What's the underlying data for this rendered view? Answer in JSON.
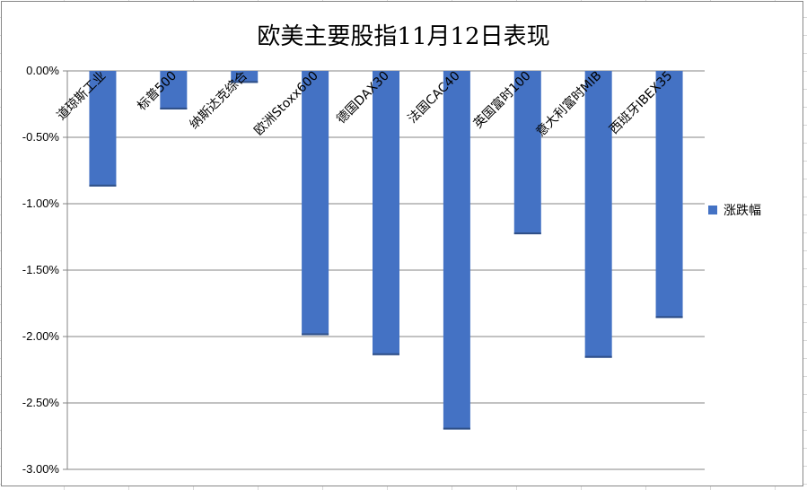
{
  "chart_data": {
    "type": "bar",
    "title": "欧美主要股指11月12日表现",
    "categories": [
      "道琼斯工业",
      "标普500",
      "纳斯达克综合",
      "欧洲Stoxx600",
      "德国DAX30",
      "法国CAC40",
      "英国富时100",
      "意大利富时MIB",
      "西班牙IBEX35"
    ],
    "series": [
      {
        "name": "涨跌幅",
        "color": "#4472c4",
        "values": [
          -0.87,
          -0.29,
          -0.09,
          -1.99,
          -2.14,
          -2.7,
          -1.23,
          -2.16,
          -1.86
        ]
      }
    ],
    "ylim": [
      -3.0,
      0.0
    ],
    "yticks": [
      0,
      -0.5,
      -1.0,
      -1.5,
      -2.0,
      -2.5,
      -3.0
    ],
    "ytick_labels": [
      "0.00%",
      "-0.50%",
      "-1.00%",
      "-1.50%",
      "-2.00%",
      "-2.50%",
      "-3.00%"
    ],
    "grid": true,
    "legend_position": "right"
  }
}
